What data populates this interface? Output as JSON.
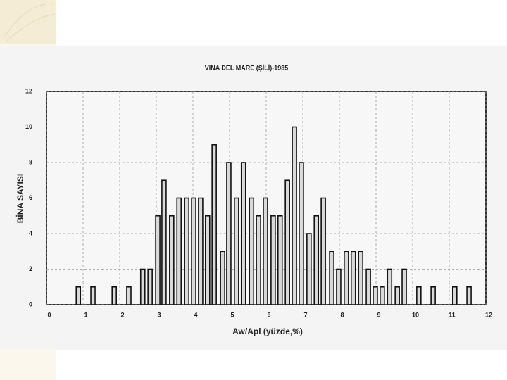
{
  "chart_data": {
    "type": "bar",
    "title": "VINA DEL MARE (ŞİLİ)-1985",
    "xlabel": "Aw/Apl (yüzde,%)",
    "ylabel": "BİNA SAYISI",
    "x": [
      0.87,
      1.27,
      1.85,
      2.25,
      2.63,
      2.83,
      3.04,
      3.21,
      3.42,
      3.62,
      3.83,
      4.02,
      4.21,
      4.4,
      4.58,
      4.81,
      4.98,
      5.19,
      5.38,
      5.6,
      5.79,
      5.98,
      6.19,
      6.38,
      6.58,
      6.77,
      6.96,
      7.17,
      7.37,
      7.56,
      7.79,
      7.98,
      8.19,
      8.38,
      8.58,
      8.79,
      8.98,
      9.17,
      9.37,
      9.58,
      9.77,
      10.17,
      10.56,
      11.15,
      11.54
    ],
    "values": [
      1,
      1,
      1,
      1,
      2,
      2,
      5,
      7,
      5,
      6,
      6,
      6,
      6,
      5,
      9,
      3,
      8,
      6,
      8,
      6,
      5,
      6,
      5,
      5,
      7,
      10,
      8,
      4,
      5,
      6,
      3,
      2,
      3,
      3,
      3,
      2,
      1,
      1,
      2,
      1,
      2,
      1,
      1,
      1,
      1
    ],
    "color": "#d9d9d9",
    "xlim": [
      0,
      12
    ],
    "xticks": [
      0,
      1,
      2,
      3,
      4,
      5,
      6,
      7,
      8,
      9,
      10,
      11,
      12
    ],
    "ylim": [
      0,
      12
    ],
    "yticks": [
      0,
      2,
      4,
      6,
      8,
      10,
      12
    ],
    "grid": true
  }
}
